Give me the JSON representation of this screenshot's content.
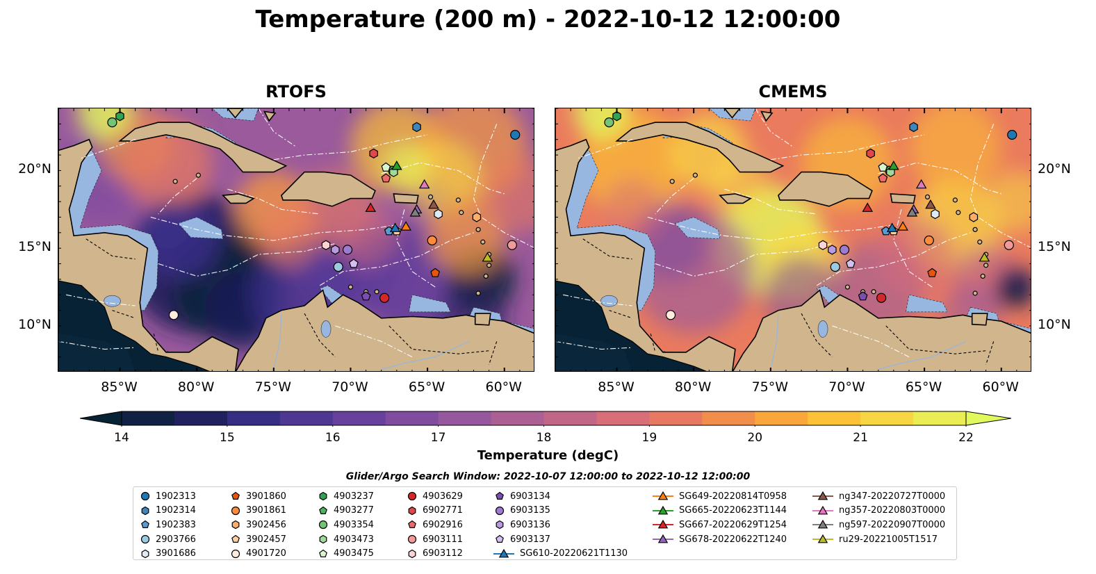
{
  "title": "Temperature (200 m) - 2022-10-12 12:00:00",
  "panels": [
    {
      "title": "RTOFS",
      "model": "rtofs"
    },
    {
      "title": "CMEMS",
      "model": "cmems"
    }
  ],
  "map_extent": {
    "lon": [
      -89,
      -58
    ],
    "lat": [
      7,
      24
    ]
  },
  "lon_ticks": [
    {
      "value": -85,
      "label": "85°W"
    },
    {
      "value": -80,
      "label": "80°W"
    },
    {
      "value": -75,
      "label": "75°W"
    },
    {
      "value": -70,
      "label": "70°W"
    },
    {
      "value": -65,
      "label": "65°W"
    },
    {
      "value": -60,
      "label": "60°W"
    }
  ],
  "lat_ticks": [
    {
      "value": 20,
      "label": "20°N"
    },
    {
      "value": 15,
      "label": "15°N"
    },
    {
      "value": 10,
      "label": "10°N"
    }
  ],
  "colorbar": {
    "label": "Temperature (degC)",
    "min": 14,
    "max": 22,
    "step": 0.5,
    "ticks": [
      "14",
      "15",
      "16",
      "17",
      "18",
      "19",
      "20",
      "21",
      "22"
    ],
    "colormap": [
      "#082235",
      "#1d1f5a",
      "#3a2f8b",
      "#5b3b9a",
      "#7b4aa0",
      "#9a5a9c",
      "#b7628e",
      "#d46c7c",
      "#ea7b5e",
      "#f79a3f",
      "#fbbd35",
      "#f8d945",
      "#e2f95d"
    ],
    "extend": "both"
  },
  "colors": {
    "land": "#d1b58d",
    "shelf": "#97b7e0",
    "ocean_dark": "#082235"
  },
  "legend": {
    "title": "Glider/Argo Search Window: 2022-10-07 12:00:00 to 2022-10-12 12:00:00",
    "columns": [
      [
        {
          "label": "1902313",
          "marker": "circle",
          "color": "#1f77b4"
        },
        {
          "label": "1902314",
          "marker": "hexagon",
          "color": "#3f86bf"
        },
        {
          "label": "1902383",
          "marker": "pentagon",
          "color": "#5b9bd0"
        },
        {
          "label": "2903766",
          "marker": "circle",
          "color": "#9ecae1"
        },
        {
          "label": "3901686",
          "marker": "hexagon",
          "color": "#deebf7"
        }
      ],
      [
        {
          "label": "3901860",
          "marker": "pentagon",
          "color": "#e6550d"
        },
        {
          "label": "3901861",
          "marker": "circle",
          "color": "#fd8d3c"
        },
        {
          "label": "3902456",
          "marker": "hexagon",
          "color": "#fdae6b"
        },
        {
          "label": "3902457",
          "marker": "pentagon",
          "color": "#fdd0a2"
        },
        {
          "label": "4901720",
          "marker": "circle",
          "color": "#feedde"
        }
      ],
      [
        {
          "label": "4903237",
          "marker": "hexagon",
          "color": "#31a354"
        },
        {
          "label": "4903277",
          "marker": "pentagon",
          "color": "#4db35e"
        },
        {
          "label": "4903354",
          "marker": "circle",
          "color": "#74c476"
        },
        {
          "label": "4903473",
          "marker": "hexagon",
          "color": "#a1d99b"
        },
        {
          "label": "4903475",
          "marker": "pentagon",
          "color": "#d9f5d0"
        }
      ],
      [
        {
          "label": "4903629",
          "marker": "circle",
          "color": "#d62728"
        },
        {
          "label": "6902771",
          "marker": "hexagon",
          "color": "#e0474a"
        },
        {
          "label": "6902916",
          "marker": "pentagon",
          "color": "#ea6a6b"
        },
        {
          "label": "6903111",
          "marker": "circle",
          "color": "#f29a9a"
        },
        {
          "label": "6903112",
          "marker": "hexagon",
          "color": "#fdd3d3"
        }
      ],
      [
        {
          "label": "6903134",
          "marker": "pentagon",
          "color": "#7b4fb0"
        },
        {
          "label": "6903135",
          "marker": "circle",
          "color": "#9e7bd0"
        },
        {
          "label": "6903136",
          "marker": "hexagon",
          "color": "#b89be0"
        },
        {
          "label": "6903137",
          "marker": "pentagon",
          "color": "#d4c0f0"
        },
        {
          "label": "SG610-20220621T1130",
          "marker": "triangle-line",
          "color": "#1f77b4"
        }
      ],
      [
        {
          "label": "SG649-20220814T0958",
          "marker": "triangle-line",
          "color": "#ff7f0e"
        },
        {
          "label": "SG665-20220623T1144",
          "marker": "triangle-line",
          "color": "#2ca02c"
        },
        {
          "label": "SG667-20220629T1254",
          "marker": "triangle-line",
          "color": "#d62728"
        },
        {
          "label": "SG678-20220622T1240",
          "marker": "triangle-line",
          "color": "#9467bd"
        }
      ],
      [
        {
          "label": "ng347-20220727T0000",
          "marker": "triangle-line",
          "color": "#8c564b"
        },
        {
          "label": "ng357-20220803T0000",
          "marker": "triangle-line",
          "color": "#e377c2"
        },
        {
          "label": "ng597-20220907T0000",
          "marker": "triangle-line",
          "color": "#7f7f7f"
        },
        {
          "label": "ru29-20221005T1517",
          "marker": "triangle-line",
          "color": "#bcbd22"
        }
      ]
    ]
  },
  "observations": [
    {
      "id": "1902313",
      "lon": -59.3,
      "lat": 22.3
    },
    {
      "id": "1902314",
      "lon": -65.7,
      "lat": 22.8
    },
    {
      "id": "1902383",
      "lon": -67.5,
      "lat": 16.1
    },
    {
      "id": "2903766",
      "lon": -70.8,
      "lat": 13.8
    },
    {
      "id": "3901686",
      "lon": -64.3,
      "lat": 17.2
    },
    {
      "id": "3901860",
      "lon": -64.5,
      "lat": 13.4
    },
    {
      "id": "3901861",
      "lon": -64.7,
      "lat": 15.5
    },
    {
      "id": "3902456",
      "lon": -61.8,
      "lat": 17.0
    },
    {
      "id": "3902457",
      "lon": -67.0,
      "lat": 16.1
    },
    {
      "id": "4901720",
      "lon": -81.5,
      "lat": 10.7
    },
    {
      "id": "4903237",
      "lon": -85.0,
      "lat": 23.5
    },
    {
      "id": "4903277",
      "lon": -67.3,
      "lat": 20.0
    },
    {
      "id": "4903354",
      "lon": -85.5,
      "lat": 23.1
    },
    {
      "id": "4903473",
      "lon": -67.2,
      "lat": 19.9
    },
    {
      "id": "4903475",
      "lon": -67.7,
      "lat": 20.2
    },
    {
      "id": "4903629",
      "lon": -67.8,
      "lat": 11.8
    },
    {
      "id": "6902771",
      "lon": -68.5,
      "lat": 21.1
    },
    {
      "id": "6902916",
      "lon": -67.7,
      "lat": 19.5
    },
    {
      "id": "6903111",
      "lon": -59.5,
      "lat": 15.2
    },
    {
      "id": "6903112",
      "lon": -71.6,
      "lat": 15.2
    },
    {
      "id": "6903134",
      "lon": -69.0,
      "lat": 11.9
    },
    {
      "id": "6903135",
      "lon": -70.2,
      "lat": 14.9
    },
    {
      "id": "6903136",
      "lon": -71.0,
      "lat": 14.9
    },
    {
      "id": "6903137",
      "lon": -69.8,
      "lat": 14.0
    },
    {
      "id": "SG610-20220621T1130",
      "lon": -67.1,
      "lat": 16.3
    },
    {
      "id": "SG649-20220814T0958",
      "lon": -66.4,
      "lat": 16.4
    },
    {
      "id": "SG665-20220623T1144",
      "lon": -67.0,
      "lat": 20.3
    },
    {
      "id": "SG667-20220629T1254",
      "lon": -68.7,
      "lat": 17.6
    },
    {
      "id": "SG678-20220622T1240",
      "lon": -65.7,
      "lat": 17.5
    },
    {
      "id": "ng347-20220727T0000",
      "lon": -64.6,
      "lat": 17.8
    },
    {
      "id": "ng357-20220803T0000",
      "lon": -65.2,
      "lat": 19.1
    },
    {
      "id": "ng597-20220907T0000",
      "lon": -65.8,
      "lat": 17.3
    },
    {
      "id": "ru29-20221005T1517",
      "lon": -61.1,
      "lat": 14.4
    }
  ]
}
